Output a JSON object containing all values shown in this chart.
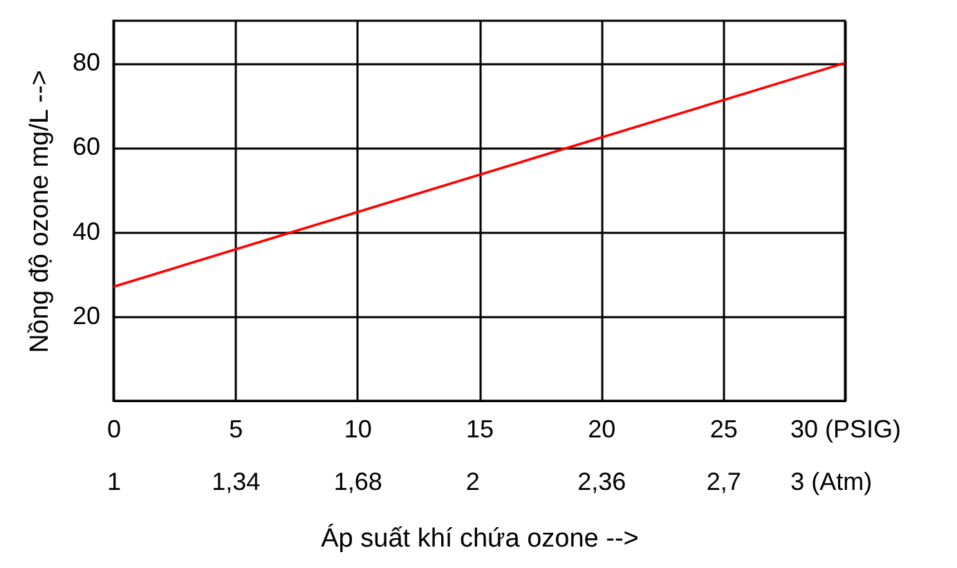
{
  "chart_data": {
    "type": "line",
    "xlabel": "Áp suất khí chứa ozone -->",
    "ylabel": "Nồng độ ozone mg/L -->",
    "x": [
      0,
      30
    ],
    "series": [
      {
        "color": "#ff0000",
        "values": [
          27,
          80
        ]
      }
    ],
    "xlim": [
      0,
      30
    ],
    "xticks": [
      0,
      5,
      10,
      15,
      20,
      25,
      {
        "value": 30,
        "label": "30 (PSIG)"
      }
    ],
    "x2lim": [
      1,
      3.04
    ],
    "x2ticks": [
      1,
      {
        "value": 1.34,
        "label": "1,34"
      },
      {
        "value": 1.68,
        "label": "1,68"
      },
      2,
      {
        "value": 2.36,
        "label": "2,36"
      },
      {
        "value": 2.7,
        "label": "2,7"
      },
      {
        "value": 3,
        "label": "3 (Atm)"
      }
    ],
    "ylim": [
      0,
      90
    ],
    "yticks": [
      20,
      40,
      60,
      80
    ],
    "grid": true
  }
}
